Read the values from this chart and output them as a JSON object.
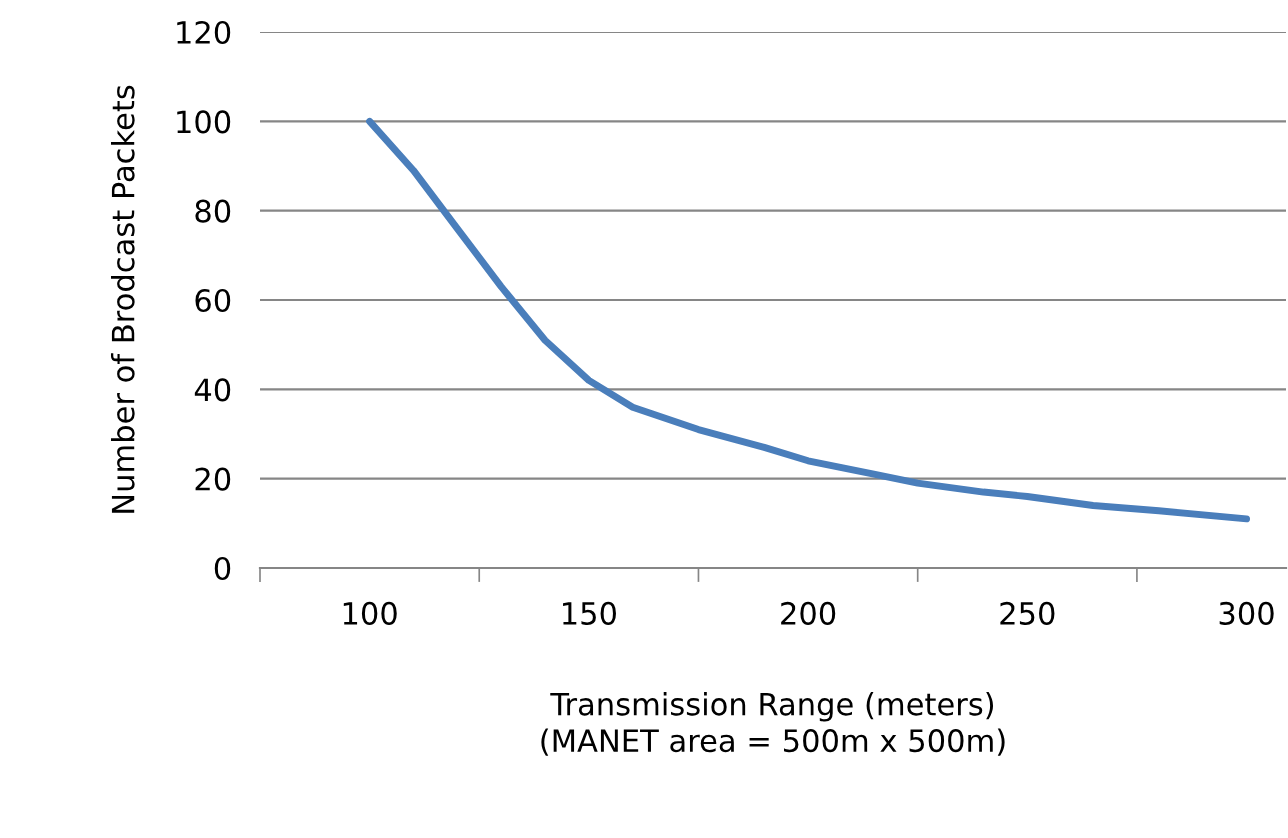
{
  "chart_data": {
    "type": "line",
    "series": [
      {
        "color": "#4a7ebb",
        "x": [
          100,
          110,
          120,
          130,
          140,
          150,
          160,
          175,
          190,
          200,
          215,
          225,
          240,
          250,
          265,
          280,
          300
        ],
        "values": [
          100,
          89,
          76,
          63,
          51,
          42,
          36,
          31,
          27,
          24,
          21,
          19,
          17,
          16,
          14,
          12.8,
          11
        ]
      }
    ],
    "ylabel": "Number of Brodcast Packets",
    "xlabel": "Transmission Range (meters)\n(MANET area = 500m x 500m)",
    "xlim": [
      75,
      309
    ],
    "xticks": [
      100,
      150,
      200,
      250,
      300,
      {
        "value": 75,
        "label": null
      },
      {
        "value": 125,
        "label": null
      },
      {
        "value": 175,
        "label": null
      },
      {
        "value": 225,
        "label": null
      },
      {
        "value": 275,
        "label": null
      }
    ],
    "ylim": [
      0,
      120
    ],
    "yticks": [
      0,
      20,
      40,
      60,
      80,
      100,
      120
    ],
    "grid": "y",
    "legend": false,
    "marker": "none",
    "line_style": "solid"
  }
}
